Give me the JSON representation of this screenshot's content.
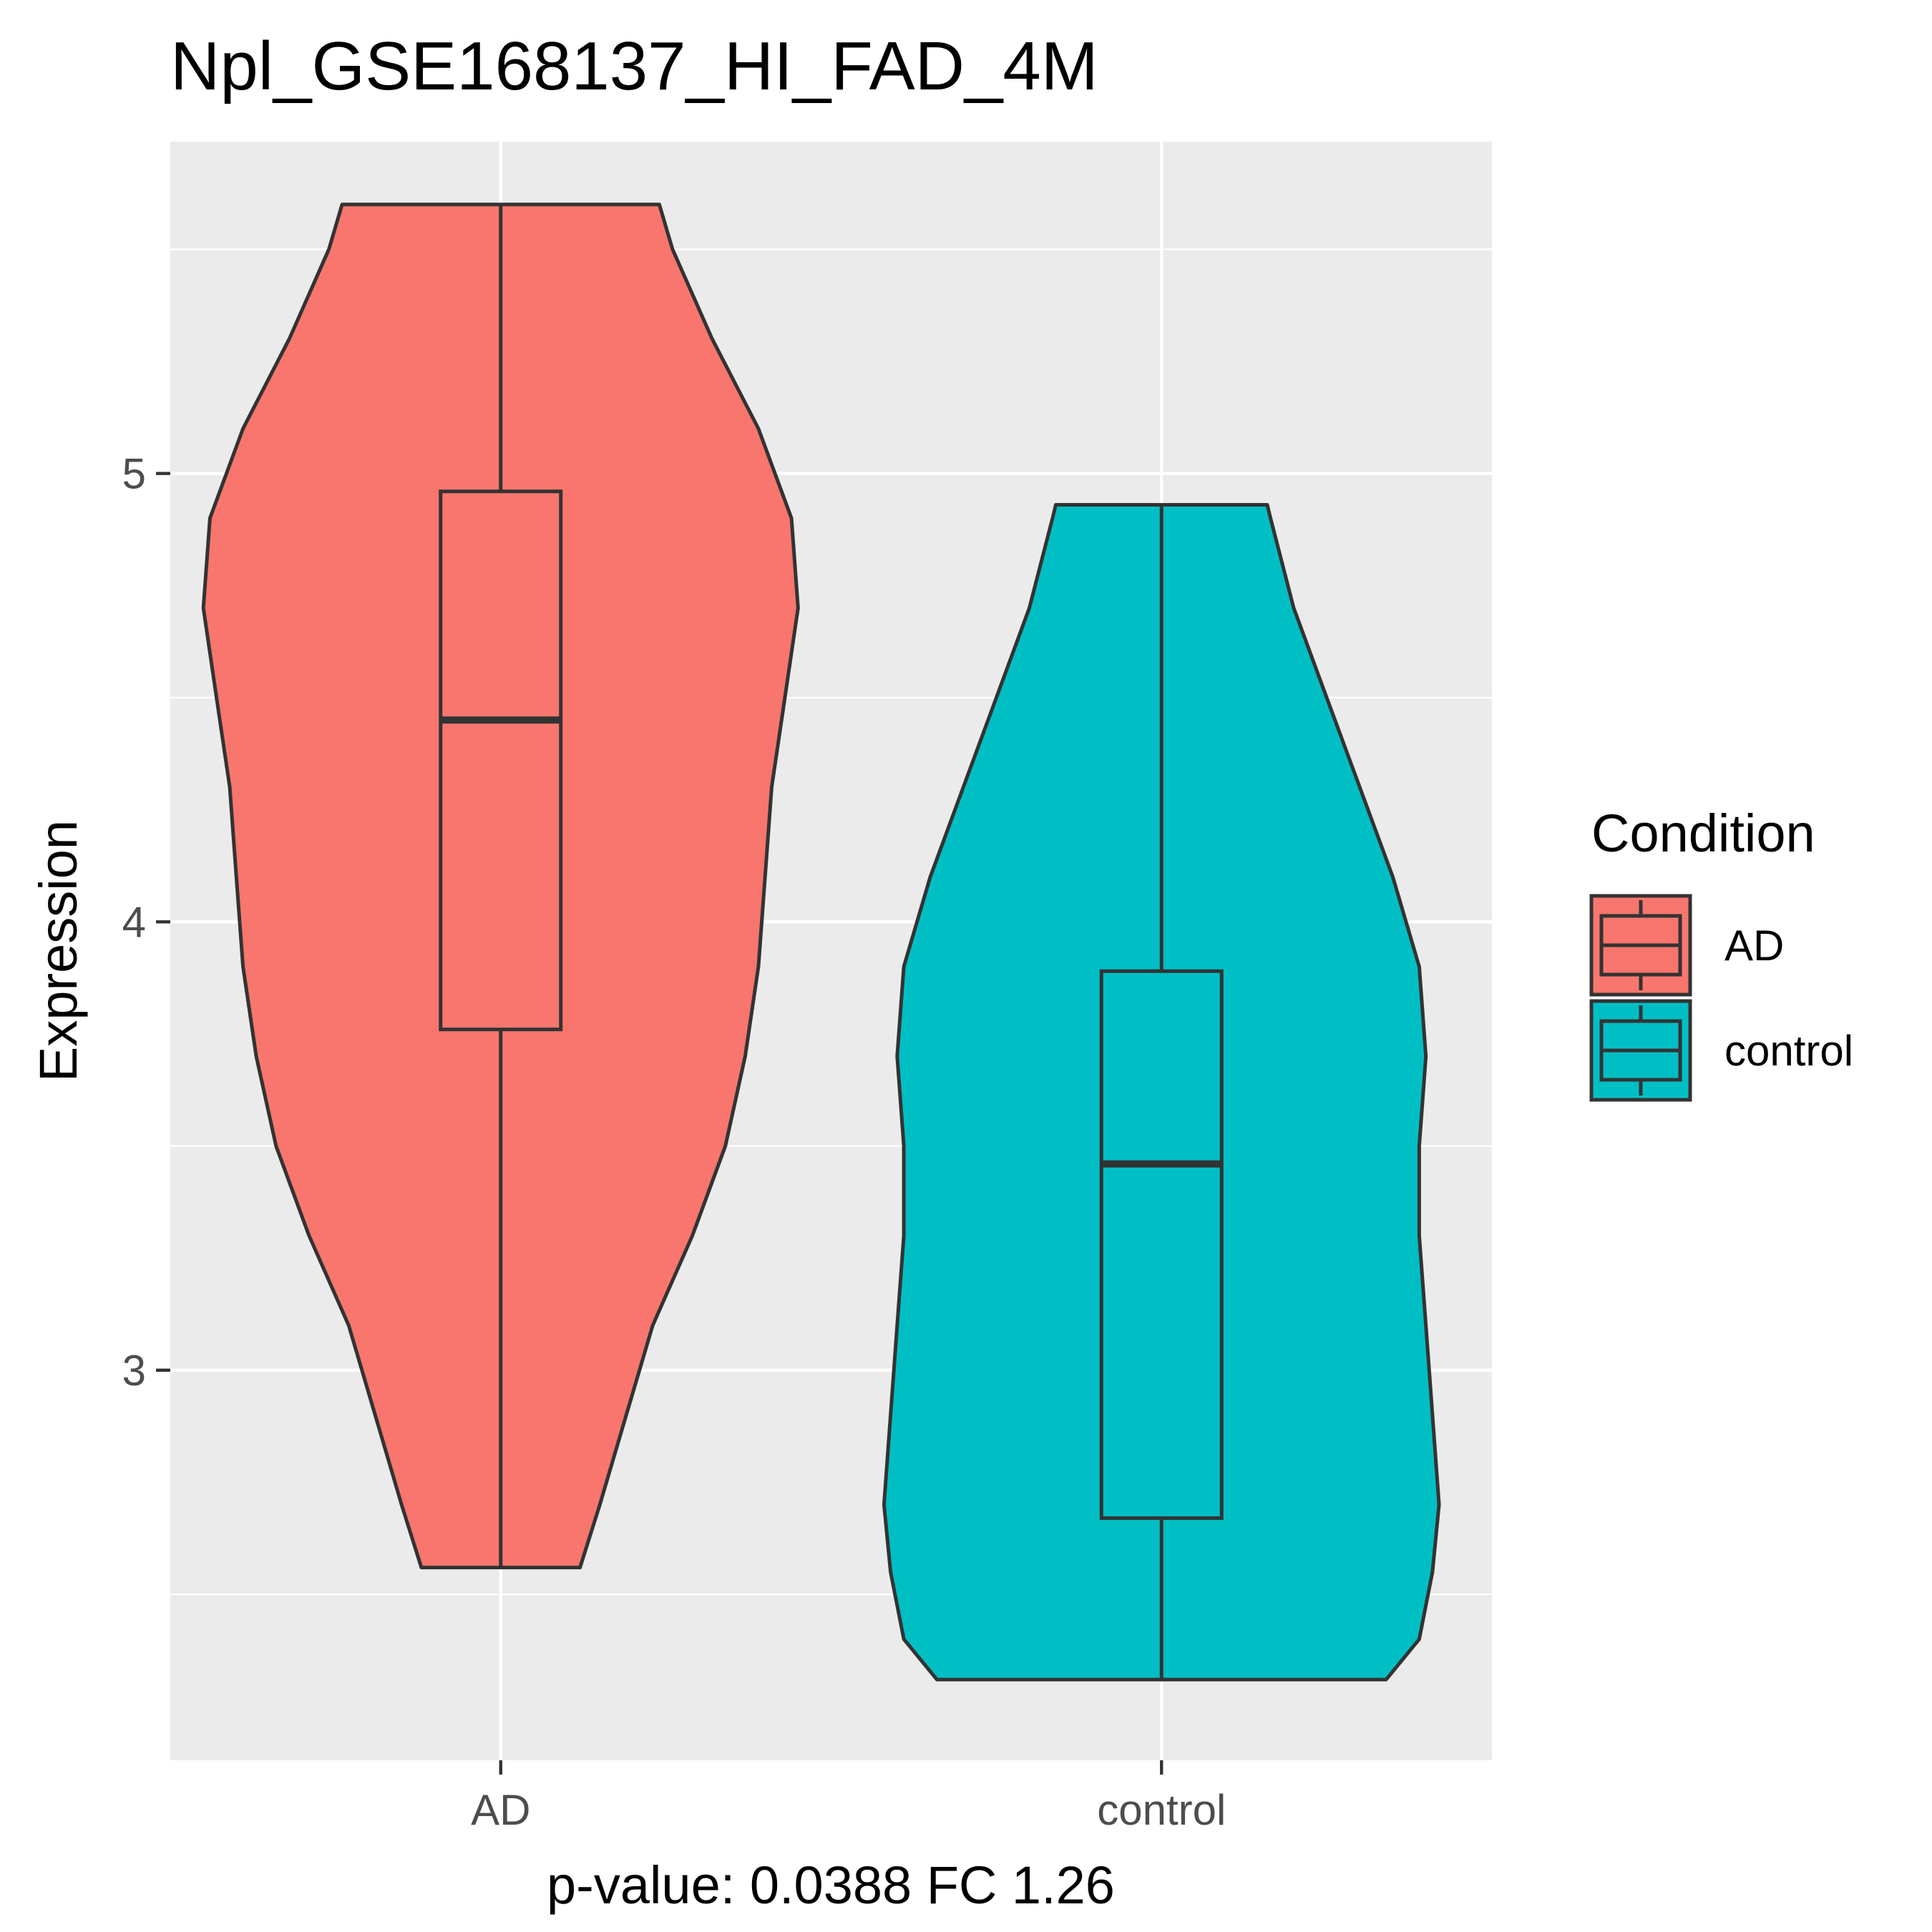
{
  "chart_data": {
    "type": "violin",
    "title": "Npl_GSE168137_HI_FAD_4M",
    "xlabel": "p-value: 0.0388 FC 1.26",
    "ylabel": "Expression",
    "categories": [
      "AD",
      "control"
    ],
    "ylim": [
      2.13,
      5.74
    ],
    "yticks": [
      3,
      4,
      5
    ],
    "grid": true,
    "legend": {
      "title": "Condition",
      "position": "right",
      "entries": [
        "AD",
        "control"
      ]
    },
    "colors": {
      "AD": "#F8766D",
      "control": "#00BFC4",
      "panel": "#EBEBEB",
      "grid": "#FFFFFF",
      "outline": "#333333"
    },
    "series": [
      {
        "name": "AD",
        "box": {
          "min": 2.56,
          "q1": 3.76,
          "median": 4.45,
          "q3": 4.96,
          "max": 5.6
        },
        "density": [
          [
            2.56,
            0.12
          ],
          [
            2.7,
            0.15
          ],
          [
            2.9,
            0.19
          ],
          [
            3.1,
            0.23
          ],
          [
            3.3,
            0.29
          ],
          [
            3.5,
            0.34
          ],
          [
            3.7,
            0.37
          ],
          [
            3.9,
            0.39
          ],
          [
            4.1,
            0.4
          ],
          [
            4.3,
            0.41
          ],
          [
            4.5,
            0.43
          ],
          [
            4.7,
            0.45
          ],
          [
            4.9,
            0.44
          ],
          [
            5.1,
            0.39
          ],
          [
            5.3,
            0.32
          ],
          [
            5.5,
            0.26
          ],
          [
            5.6,
            0.24
          ]
        ]
      },
      {
        "name": "control",
        "box": {
          "min": 2.31,
          "q1": 2.67,
          "median": 3.46,
          "q3": 3.89,
          "max": 4.93
        },
        "density": [
          [
            2.31,
            0.34
          ],
          [
            2.4,
            0.39
          ],
          [
            2.55,
            0.41
          ],
          [
            2.7,
            0.42
          ],
          [
            2.9,
            0.41
          ],
          [
            3.1,
            0.4
          ],
          [
            3.3,
            0.39
          ],
          [
            3.5,
            0.39
          ],
          [
            3.7,
            0.4
          ],
          [
            3.9,
            0.39
          ],
          [
            4.1,
            0.35
          ],
          [
            4.3,
            0.3
          ],
          [
            4.5,
            0.25
          ],
          [
            4.7,
            0.2
          ],
          [
            4.9,
            0.165
          ],
          [
            4.93,
            0.16
          ]
        ]
      }
    ]
  }
}
